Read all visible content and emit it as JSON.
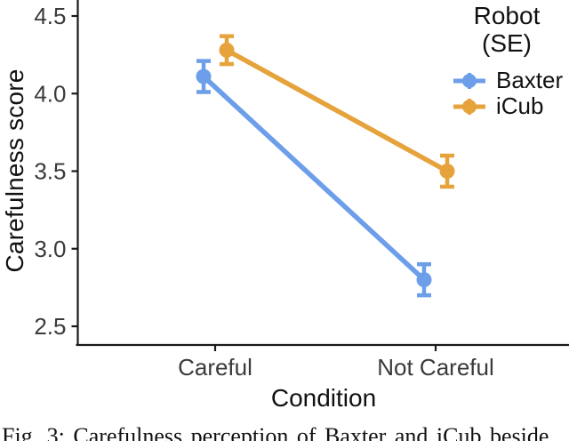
{
  "chart_data": {
    "type": "line",
    "title": "",
    "xlabel": "Condition",
    "ylabel": "Carefulness score",
    "categories": [
      "Careful",
      "Not Careful"
    ],
    "series": [
      {
        "name": "Baxter",
        "color": "#6d9ee9",
        "values": [
          4.11,
          2.8
        ],
        "se": [
          0.1,
          0.1
        ]
      },
      {
        "name": "iCub",
        "color": "#e6a33c",
        "values": [
          4.28,
          3.5
        ],
        "se": [
          0.09,
          0.1
        ]
      }
    ],
    "yticks": [
      2.5,
      3.0,
      3.5,
      4.0,
      4.5
    ],
    "ylim": [
      2.5,
      4.5
    ],
    "grid": "off",
    "legend_position": "right",
    "axis_color": "#1a1a1a",
    "tick_label_color": "#3a3a3a"
  },
  "legend": {
    "title_line1": "Robot",
    "title_line2": "(SE)"
  },
  "caption": {
    "text": "Fig. 3: Carefulness perception of Baxter and iCub beside"
  }
}
